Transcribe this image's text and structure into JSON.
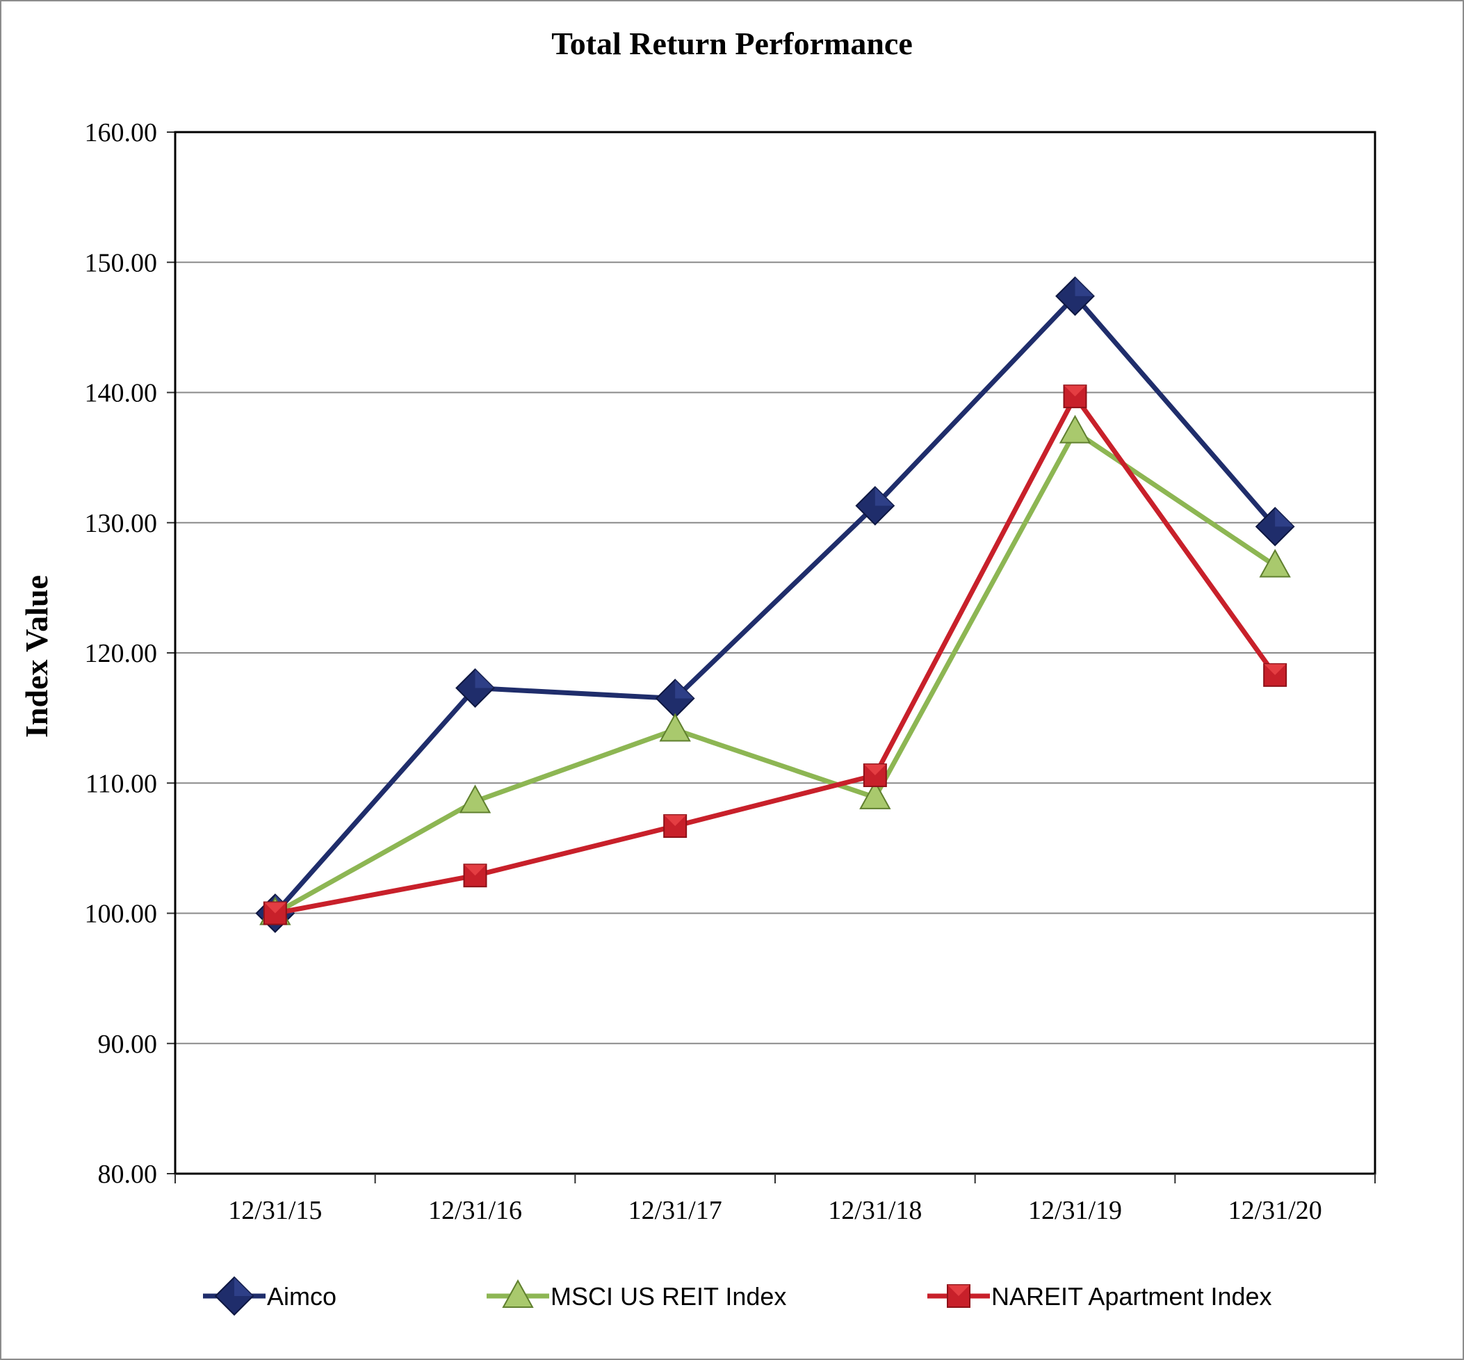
{
  "chart_data": {
    "type": "line",
    "title": "Total Return Performance",
    "xlabel": "",
    "ylabel": "Index Value",
    "categories": [
      "12/31/15",
      "12/31/16",
      "12/31/17",
      "12/31/18",
      "12/31/19",
      "12/31/20"
    ],
    "ylim": [
      80,
      160
    ],
    "yticks": [
      "80.00",
      "90.00",
      "100.00",
      "110.00",
      "120.00",
      "130.00",
      "140.00",
      "150.00",
      "160.00"
    ],
    "grid": true,
    "legend_position": "bottom",
    "series": [
      {
        "name": "Aimco",
        "values": [
          100.0,
          117.3,
          116.5,
          131.3,
          147.4,
          129.7
        ],
        "color": "#1f2d6b",
        "marker": "diamond"
      },
      {
        "name": "MSCI US REIT Index",
        "values": [
          100.0,
          108.6,
          114.1,
          108.9,
          137.0,
          126.7
        ],
        "color": "#8db653",
        "marker": "triangle"
      },
      {
        "name": "NAREIT Apartment Index",
        "values": [
          100.0,
          102.9,
          106.7,
          110.6,
          139.7,
          118.3
        ],
        "color": "#c8202a",
        "marker": "square"
      }
    ]
  }
}
